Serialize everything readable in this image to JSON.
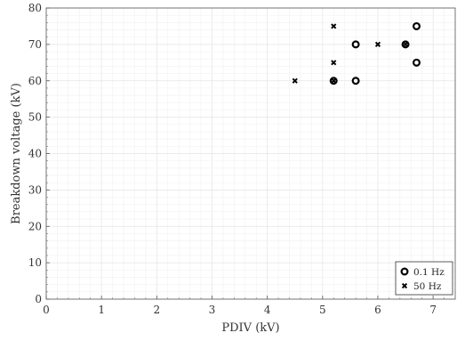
{
  "chart_data": {
    "type": "scatter",
    "xlabel": "PDIV (kV)",
    "ylabel": "Breakdown voltage (kV)",
    "xlim": [
      0,
      7.4
    ],
    "ylim": [
      0,
      80
    ],
    "x_ticks": [
      "0",
      "1",
      "2",
      "3",
      "4",
      "5",
      "6",
      "7"
    ],
    "y_ticks": [
      "0",
      "10",
      "20",
      "30",
      "40",
      "50",
      "60",
      "70",
      "80"
    ],
    "grid": true,
    "legend_position": "bottom-right",
    "series": [
      {
        "name": "0.1 Hz",
        "marker": "circle",
        "x": [
          5.2,
          5.6,
          5.6,
          6.5,
          6.7,
          6.7
        ],
        "y": [
          60,
          60,
          70,
          70,
          65,
          75
        ]
      },
      {
        "name": "50 Hz",
        "marker": "cross",
        "x": [
          4.5,
          5.2,
          5.2,
          5.2,
          6.0,
          6.5
        ],
        "y": [
          60,
          60,
          65,
          75,
          70,
          70
        ]
      }
    ]
  }
}
